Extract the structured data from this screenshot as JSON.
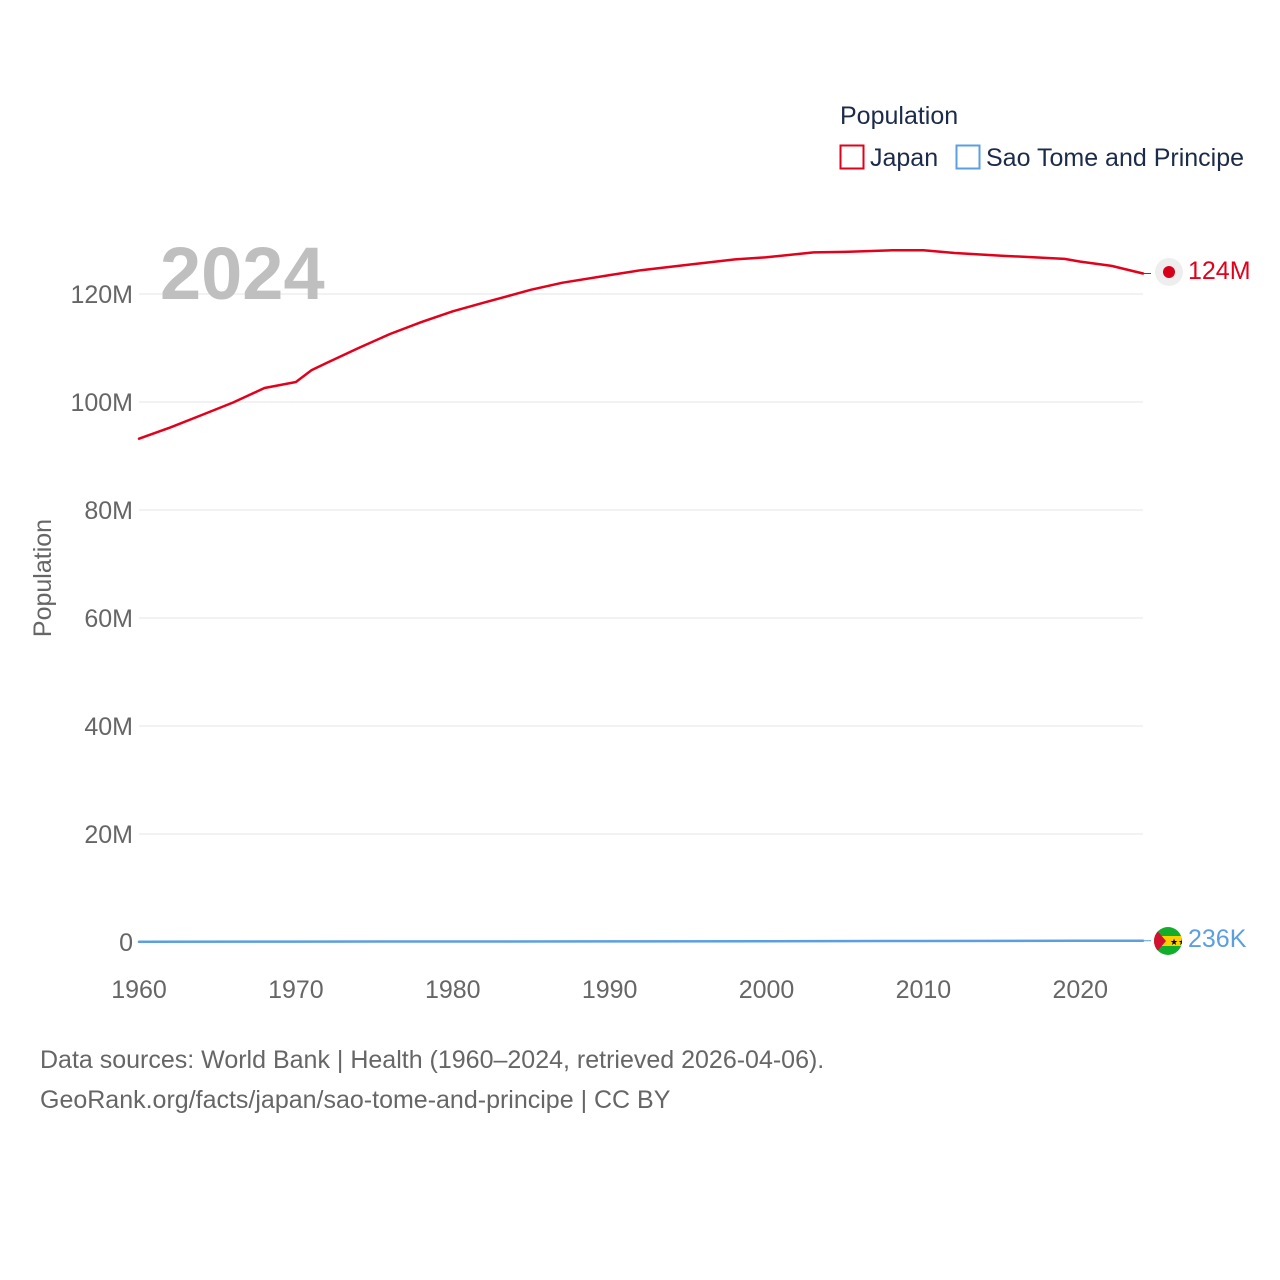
{
  "chart_data": {
    "type": "line",
    "title": "",
    "year_label": "2024",
    "xlabel": "",
    "ylabel": "Population",
    "xlim": [
      1960,
      2024
    ],
    "ylim": [
      0,
      130000000
    ],
    "x_ticks": [
      1960,
      1970,
      1980,
      1990,
      2000,
      2010,
      2020
    ],
    "x_tick_labels": [
      "1960",
      "1970",
      "1980",
      "1990",
      "2000",
      "2010",
      "2020"
    ],
    "y_ticks": [
      0,
      20000000,
      40000000,
      60000000,
      80000000,
      100000000,
      120000000
    ],
    "y_tick_labels": [
      "0",
      "20M",
      "40M",
      "60M",
      "80M",
      "100M",
      "120M"
    ],
    "grid": true,
    "legend": {
      "title": "Population",
      "placement": "top-right",
      "entries": [
        {
          "name": "Japan",
          "color": "#e3001b"
        },
        {
          "name": "Sao Tome and Principe",
          "color": "#5b9fe0"
        }
      ]
    },
    "series": [
      {
        "name": "Japan",
        "color": "#e3001b",
        "end_label": "124M",
        "x": [
          1960,
          1962,
          1964,
          1966,
          1968,
          1970,
          1971,
          1972,
          1974,
          1976,
          1978,
          1980,
          1982,
          1985,
          1987,
          1990,
          1992,
          1995,
          1998,
          2000,
          2003,
          2005,
          2008,
          2010,
          2012,
          2015,
          2017,
          2019,
          2020,
          2022,
          2024
        ],
        "values": [
          93200000,
          95300000,
          97600000,
          99900000,
          102600000,
          103700000,
          105900000,
          107300000,
          110000000,
          112600000,
          114800000,
          116800000,
          118400000,
          120800000,
          122100000,
          123500000,
          124400000,
          125400000,
          126400000,
          126800000,
          127700000,
          127800000,
          128100000,
          128100000,
          127600000,
          127100000,
          126800000,
          126500000,
          126000000,
          125200000,
          123800000
        ]
      },
      {
        "name": "Sao Tome and Principe",
        "color": "#5b9fe0",
        "end_label": "236K",
        "x": [
          1960,
          1970,
          1980,
          1990,
          2000,
          2010,
          2020,
          2024
        ],
        "values": [
          64000,
          75000,
          95000,
          120000,
          144000,
          182000,
          220000,
          236000
        ]
      }
    ]
  },
  "footer": {
    "line1": "Data sources: World Bank | Health (1960–2024, retrieved 2026-04-06).",
    "line2": "GeoRank.org/facts/japan/sao-tome-and-principe | CC BY"
  }
}
